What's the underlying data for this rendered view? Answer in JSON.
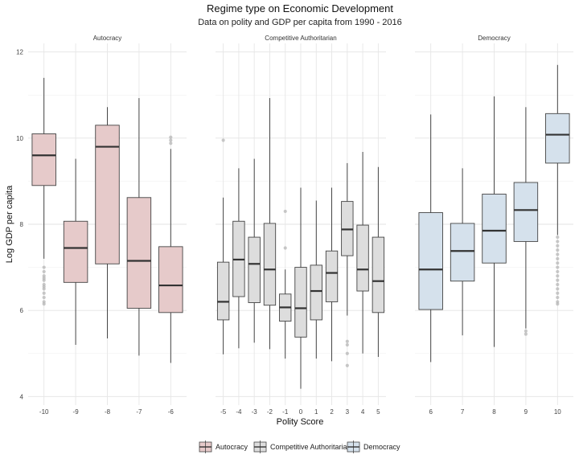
{
  "chart_data": {
    "type": "boxplot",
    "title": "Regime type on Economic Development",
    "subtitle": "Data on polity and GDP per capita from 1990 - 2016",
    "xlabel": "Polity Score",
    "ylabel": "Log GDP per capita",
    "ylim": [
      3.8,
      12.2
    ],
    "yticks": [
      4,
      6,
      8,
      10,
      12
    ],
    "grid": true,
    "legend": "bottom",
    "facets": [
      {
        "name": "Autocracy",
        "color": "#e6caca",
        "categories": [
          "-10",
          "-9",
          "-8",
          "-7",
          "-6"
        ],
        "boxes": [
          {
            "x": "-10",
            "lower": 7.2,
            "q1": 8.9,
            "median": 9.6,
            "q3": 10.1,
            "upper": 11.4,
            "outliers": [
              7.0,
              6.9,
              6.8,
              6.75,
              6.7,
              6.6,
              6.55,
              6.5,
              6.4,
              6.3,
              6.2,
              6.15
            ]
          },
          {
            "x": "-9",
            "lower": 5.2,
            "q1": 6.65,
            "median": 7.45,
            "q3": 8.07,
            "upper": 9.52,
            "outliers": []
          },
          {
            "x": "-8",
            "lower": 5.35,
            "q1": 7.08,
            "median": 9.8,
            "q3": 10.3,
            "upper": 10.72,
            "outliers": []
          },
          {
            "x": "-7",
            "lower": 4.95,
            "q1": 6.05,
            "median": 7.15,
            "q3": 8.62,
            "upper": 10.93,
            "outliers": []
          },
          {
            "x": "-6",
            "lower": 4.78,
            "q1": 5.95,
            "median": 6.58,
            "q3": 7.48,
            "upper": 9.75,
            "outliers": [
              10.02,
              9.95,
              9.88
            ]
          }
        ]
      },
      {
        "name": "Competitive Authoritarian",
        "color": "#dddddd",
        "categories": [
          "-5",
          "-4",
          "-3",
          "-2",
          "-1",
          "0",
          "1",
          "2",
          "3",
          "4",
          "5"
        ],
        "boxes": [
          {
            "x": "-5",
            "lower": 4.98,
            "q1": 5.78,
            "median": 6.2,
            "q3": 7.12,
            "upper": 8.62,
            "outliers": [
              9.95
            ]
          },
          {
            "x": "-4",
            "lower": 5.12,
            "q1": 6.32,
            "median": 7.18,
            "q3": 8.07,
            "upper": 9.3,
            "outliers": []
          },
          {
            "x": "-3",
            "lower": 5.25,
            "q1": 6.18,
            "median": 7.08,
            "q3": 7.7,
            "upper": 9.52,
            "outliers": []
          },
          {
            "x": "-2",
            "lower": 5.1,
            "q1": 6.12,
            "median": 6.95,
            "q3": 8.02,
            "upper": 10.93,
            "outliers": []
          },
          {
            "x": "-1",
            "lower": 4.88,
            "q1": 5.75,
            "median": 6.07,
            "q3": 6.38,
            "upper": 6.95,
            "outliers": [
              8.3,
              7.45
            ]
          },
          {
            "x": "0",
            "lower": 4.18,
            "q1": 5.38,
            "median": 6.05,
            "q3": 7.0,
            "upper": 8.85,
            "outliers": []
          },
          {
            "x": "1",
            "lower": 4.88,
            "q1": 5.78,
            "median": 6.45,
            "q3": 7.05,
            "upper": 8.55,
            "outliers": []
          },
          {
            "x": "2",
            "lower": 4.82,
            "q1": 6.2,
            "median": 6.87,
            "q3": 7.38,
            "upper": 8.85,
            "outliers": []
          },
          {
            "x": "3",
            "lower": 5.88,
            "q1": 7.27,
            "median": 7.88,
            "q3": 8.53,
            "upper": 9.42,
            "outliers": [
              5.28,
              5.2,
              5.0,
              4.72
            ]
          },
          {
            "x": "4",
            "lower": 5.0,
            "q1": 6.45,
            "median": 6.95,
            "q3": 7.98,
            "upper": 9.68,
            "outliers": []
          },
          {
            "x": "5",
            "lower": 4.92,
            "q1": 5.95,
            "median": 6.68,
            "q3": 7.7,
            "upper": 9.33,
            "outliers": []
          }
        ]
      },
      {
        "name": "Democracy",
        "color": "#d5e1ec",
        "categories": [
          "6",
          "7",
          "8",
          "9",
          "10"
        ],
        "boxes": [
          {
            "x": "6",
            "lower": 4.8,
            "q1": 6.02,
            "median": 6.95,
            "q3": 8.27,
            "upper": 10.55,
            "outliers": []
          },
          {
            "x": "7",
            "lower": 5.42,
            "q1": 6.68,
            "median": 7.38,
            "q3": 8.02,
            "upper": 9.3,
            "outliers": []
          },
          {
            "x": "8",
            "lower": 5.15,
            "q1": 7.1,
            "median": 7.85,
            "q3": 8.7,
            "upper": 10.97,
            "outliers": []
          },
          {
            "x": "9",
            "lower": 5.58,
            "q1": 7.6,
            "median": 8.33,
            "q3": 8.97,
            "upper": 10.72,
            "outliers": [
              5.52,
              5.45
            ]
          },
          {
            "x": "10",
            "lower": 7.75,
            "q1": 9.42,
            "median": 10.08,
            "q3": 10.57,
            "upper": 11.7,
            "outliers": [
              7.7,
              7.6,
              7.5,
              7.4,
              7.3,
              7.2,
              7.1,
              7.0,
              6.9,
              6.8,
              6.7,
              6.6,
              6.5,
              6.4,
              6.3,
              6.2,
              6.15
            ]
          }
        ]
      }
    ],
    "legend_entries": [
      "Autocracy",
      "Competitive Authoritarian",
      "Democracy"
    ]
  }
}
